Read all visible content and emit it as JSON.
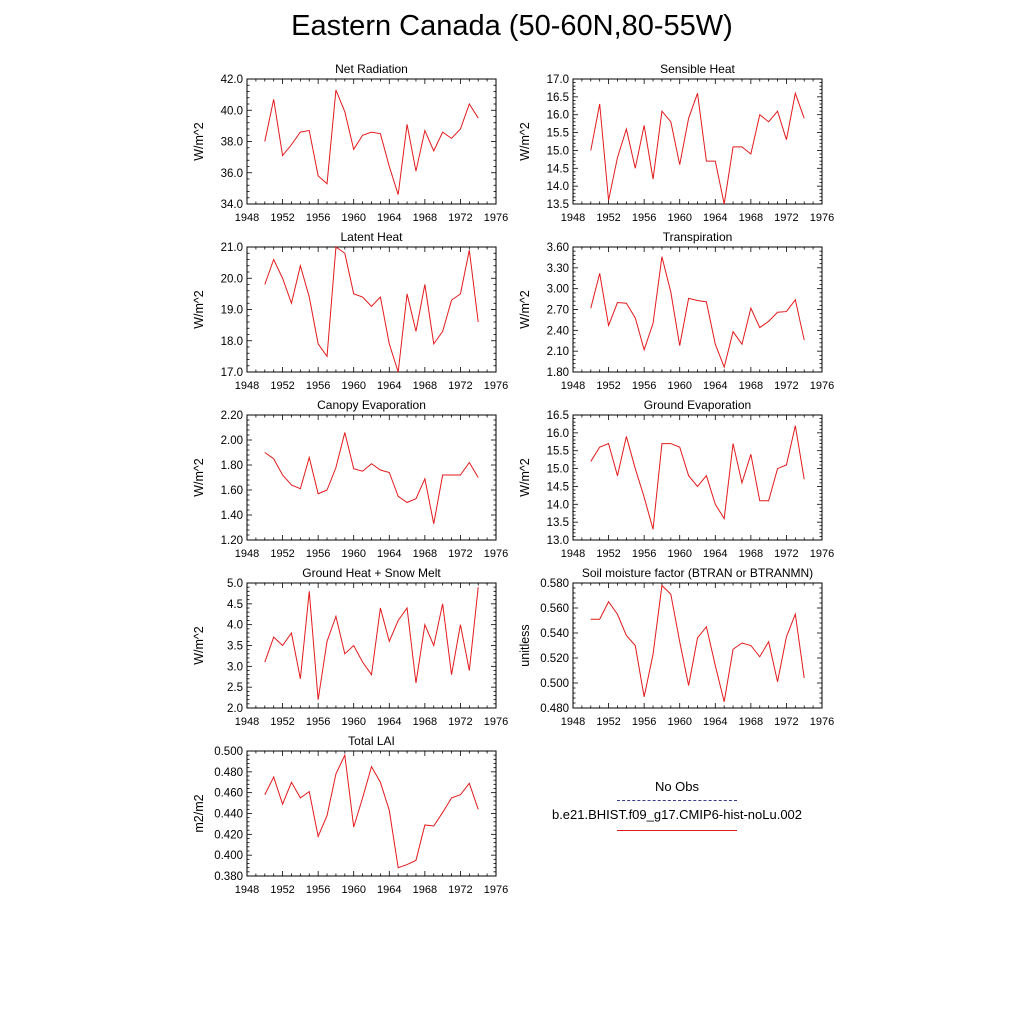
{
  "page_title": "Eastern Canada (50-60N,80-55W)",
  "legend": {
    "obs_label": "No Obs",
    "model_label": "b.e21.BHIST.f09_g17.CMIP6-hist-noLu.002"
  },
  "colors": {
    "model": "#e31a1c",
    "obs": "#3a3a8c"
  },
  "chart_data": [
    {
      "type": "line",
      "title": "Net Radiation",
      "ylabel": "W/m^2",
      "xlim": [
        1948,
        1976
      ],
      "ylim": [
        34.0,
        42.0
      ],
      "x_ticks": [
        1948,
        1952,
        1956,
        1960,
        1964,
        1968,
        1972,
        1976
      ],
      "y_ticks": [
        34.0,
        36.0,
        38.0,
        40.0,
        42.0
      ],
      "y_decimals": 1,
      "series": [
        {
          "x": [
            1950,
            1951,
            1952,
            1953,
            1954,
            1955,
            1956,
            1957,
            1958,
            1959,
            1960,
            1961,
            1962,
            1963,
            1964,
            1965,
            1966,
            1967,
            1968,
            1969,
            1970,
            1971,
            1972,
            1973,
            1974
          ],
          "values": [
            38.0,
            40.7,
            37.1,
            37.8,
            38.6,
            38.7,
            35.8,
            35.3,
            41.3,
            39.9,
            37.5,
            38.4,
            38.6,
            38.5,
            36.4,
            34.6,
            39.1,
            36.1,
            38.7,
            37.4,
            38.6,
            38.2,
            38.8,
            40.4,
            39.5
          ]
        }
      ]
    },
    {
      "type": "line",
      "title": "Sensible Heat",
      "ylabel": "W/m^2",
      "xlim": [
        1948,
        1976
      ],
      "ylim": [
        13.5,
        17.0
      ],
      "x_ticks": [
        1948,
        1952,
        1956,
        1960,
        1964,
        1968,
        1972,
        1976
      ],
      "y_ticks": [
        13.5,
        14.0,
        14.5,
        15.0,
        15.5,
        16.0,
        16.5,
        17.0
      ],
      "y_decimals": 1,
      "series": [
        {
          "x": [
            1950,
            1951,
            1952,
            1953,
            1954,
            1955,
            1956,
            1957,
            1958,
            1959,
            1960,
            1961,
            1962,
            1963,
            1964,
            1965,
            1966,
            1967,
            1968,
            1969,
            1970,
            1971,
            1972,
            1973,
            1974
          ],
          "values": [
            15.0,
            16.3,
            13.6,
            14.8,
            15.6,
            14.5,
            15.7,
            14.2,
            16.1,
            15.8,
            14.6,
            15.9,
            16.6,
            14.7,
            14.7,
            13.5,
            15.1,
            15.1,
            14.9,
            16.0,
            15.8,
            16.1,
            15.3,
            16.6,
            15.9
          ]
        }
      ]
    },
    {
      "type": "line",
      "title": "Latent Heat",
      "ylabel": "W/m^2",
      "xlim": [
        1948,
        1976
      ],
      "ylim": [
        17.0,
        21.0
      ],
      "x_ticks": [
        1948,
        1952,
        1956,
        1960,
        1964,
        1968,
        1972,
        1976
      ],
      "y_ticks": [
        17.0,
        18.0,
        19.0,
        20.0,
        21.0
      ],
      "y_decimals": 1,
      "series": [
        {
          "x": [
            1950,
            1951,
            1952,
            1953,
            1954,
            1955,
            1956,
            1957,
            1958,
            1959,
            1960,
            1961,
            1962,
            1963,
            1964,
            1965,
            1966,
            1967,
            1968,
            1969,
            1970,
            1971,
            1972,
            1973,
            1974
          ],
          "values": [
            19.8,
            20.6,
            20.0,
            19.2,
            20.4,
            19.4,
            17.9,
            17.5,
            21.0,
            20.8,
            19.5,
            19.4,
            19.1,
            19.4,
            17.9,
            17.0,
            19.5,
            18.3,
            19.8,
            17.9,
            18.3,
            19.3,
            19.5,
            20.9,
            18.6
          ]
        }
      ]
    },
    {
      "type": "line",
      "title": "Transpiration",
      "ylabel": "W/m^2",
      "xlim": [
        1948,
        1976
      ],
      "ylim": [
        1.8,
        3.6
      ],
      "x_ticks": [
        1948,
        1952,
        1956,
        1960,
        1964,
        1968,
        1972,
        1976
      ],
      "y_ticks": [
        1.8,
        2.1,
        2.4,
        2.7,
        3.0,
        3.3,
        3.6
      ],
      "y_decimals": 2,
      "series": [
        {
          "x": [
            1950,
            1951,
            1952,
            1953,
            1954,
            1955,
            1956,
            1957,
            1958,
            1959,
            1960,
            1961,
            1962,
            1963,
            1964,
            1965,
            1966,
            1967,
            1968,
            1969,
            1970,
            1971,
            1972,
            1973,
            1974
          ],
          "values": [
            2.72,
            3.22,
            2.47,
            2.8,
            2.79,
            2.58,
            2.12,
            2.5,
            3.46,
            2.95,
            2.18,
            2.86,
            2.83,
            2.81,
            2.2,
            1.87,
            2.38,
            2.2,
            2.72,
            2.44,
            2.53,
            2.66,
            2.67,
            2.84,
            2.26
          ]
        }
      ]
    },
    {
      "type": "line",
      "title": "Canopy Evaporation",
      "ylabel": "W/m^2",
      "xlim": [
        1948,
        1976
      ],
      "ylim": [
        1.2,
        2.2
      ],
      "x_ticks": [
        1948,
        1952,
        1956,
        1960,
        1964,
        1968,
        1972,
        1976
      ],
      "y_ticks": [
        1.2,
        1.4,
        1.6,
        1.8,
        2.0,
        2.2
      ],
      "y_decimals": 2,
      "series": [
        {
          "x": [
            1950,
            1951,
            1952,
            1953,
            1954,
            1955,
            1956,
            1957,
            1958,
            1959,
            1960,
            1961,
            1962,
            1963,
            1964,
            1965,
            1966,
            1967,
            1968,
            1969,
            1970,
            1971,
            1972,
            1973,
            1974
          ],
          "values": [
            1.9,
            1.85,
            1.72,
            1.64,
            1.61,
            1.86,
            1.57,
            1.6,
            1.78,
            2.06,
            1.77,
            1.75,
            1.81,
            1.76,
            1.74,
            1.55,
            1.5,
            1.53,
            1.69,
            1.33,
            1.72,
            1.72,
            1.72,
            1.82,
            1.7
          ]
        }
      ]
    },
    {
      "type": "line",
      "title": "Ground Evaporation",
      "ylabel": "W/m^2",
      "xlim": [
        1948,
        1976
      ],
      "ylim": [
        13.0,
        16.5
      ],
      "x_ticks": [
        1948,
        1952,
        1956,
        1960,
        1964,
        1968,
        1972,
        1976
      ],
      "y_ticks": [
        13.0,
        13.5,
        14.0,
        14.5,
        15.0,
        15.5,
        16.0,
        16.5
      ],
      "y_decimals": 1,
      "series": [
        {
          "x": [
            1950,
            1951,
            1952,
            1953,
            1954,
            1955,
            1956,
            1957,
            1958,
            1959,
            1960,
            1961,
            1962,
            1963,
            1964,
            1965,
            1966,
            1967,
            1968,
            1969,
            1970,
            1971,
            1972,
            1973,
            1974
          ],
          "values": [
            15.2,
            15.6,
            15.7,
            14.8,
            15.9,
            15.0,
            14.2,
            13.3,
            15.7,
            15.7,
            15.6,
            14.8,
            14.5,
            14.8,
            14.0,
            13.6,
            15.7,
            14.6,
            15.4,
            14.1,
            14.1,
            15.0,
            15.1,
            16.2,
            14.7
          ]
        }
      ]
    },
    {
      "type": "line",
      "title": "Ground Heat + Snow Melt",
      "ylabel": "W/m^2",
      "xlim": [
        1948,
        1976
      ],
      "ylim": [
        2.0,
        5.0
      ],
      "x_ticks": [
        1948,
        1952,
        1956,
        1960,
        1964,
        1968,
        1972,
        1976
      ],
      "y_ticks": [
        2.0,
        2.5,
        3.0,
        3.5,
        4.0,
        4.5,
        5.0
      ],
      "y_decimals": 1,
      "series": [
        {
          "x": [
            1950,
            1951,
            1952,
            1953,
            1954,
            1955,
            1956,
            1957,
            1958,
            1959,
            1960,
            1961,
            1962,
            1963,
            1964,
            1965,
            1966,
            1967,
            1968,
            1969,
            1970,
            1971,
            1972,
            1973,
            1974
          ],
          "values": [
            3.1,
            3.7,
            3.5,
            3.8,
            2.7,
            4.8,
            2.2,
            3.6,
            4.2,
            3.3,
            3.5,
            3.1,
            2.8,
            4.4,
            3.6,
            4.1,
            4.4,
            2.6,
            4.0,
            3.5,
            4.5,
            2.8,
            4.0,
            2.9,
            4.9
          ]
        }
      ]
    },
    {
      "type": "line",
      "title": "Soil moisture factor (BTRAN or BTRANMN)",
      "ylabel": "unitless",
      "xlim": [
        1948,
        1976
      ],
      "ylim": [
        0.48,
        0.58
      ],
      "x_ticks": [
        1948,
        1952,
        1956,
        1960,
        1964,
        1968,
        1972,
        1976
      ],
      "y_ticks": [
        0.48,
        0.5,
        0.52,
        0.54,
        0.56,
        0.58
      ],
      "y_decimals": 3,
      "series": [
        {
          "x": [
            1950,
            1951,
            1952,
            1953,
            1954,
            1955,
            1956,
            1957,
            1958,
            1959,
            1960,
            1961,
            1962,
            1963,
            1964,
            1965,
            1966,
            1967,
            1968,
            1969,
            1970,
            1971,
            1972,
            1973,
            1974
          ],
          "values": [
            0.551,
            0.551,
            0.565,
            0.555,
            0.538,
            0.53,
            0.489,
            0.523,
            0.578,
            0.571,
            0.533,
            0.498,
            0.536,
            0.545,
            0.514,
            0.485,
            0.527,
            0.532,
            0.53,
            0.521,
            0.533,
            0.501,
            0.537,
            0.555,
            0.504
          ]
        }
      ]
    },
    {
      "type": "line",
      "title": "Total LAI",
      "ylabel": "m2/m2",
      "xlim": [
        1948,
        1976
      ],
      "ylim": [
        0.38,
        0.5
      ],
      "x_ticks": [
        1948,
        1952,
        1956,
        1960,
        1964,
        1968,
        1972,
        1976
      ],
      "y_ticks": [
        0.38,
        0.4,
        0.42,
        0.44,
        0.46,
        0.48,
        0.5
      ],
      "y_decimals": 3,
      "series": [
        {
          "x": [
            1950,
            1951,
            1952,
            1953,
            1954,
            1955,
            1956,
            1957,
            1958,
            1959,
            1960,
            1961,
            1962,
            1963,
            1964,
            1965,
            1966,
            1967,
            1968,
            1969,
            1970,
            1971,
            1972,
            1973,
            1974
          ],
          "values": [
            0.458,
            0.475,
            0.449,
            0.47,
            0.455,
            0.461,
            0.418,
            0.438,
            0.478,
            0.496,
            0.427,
            0.455,
            0.485,
            0.47,
            0.443,
            0.388,
            0.391,
            0.395,
            0.429,
            0.428,
            0.441,
            0.455,
            0.458,
            0.469,
            0.444
          ]
        }
      ]
    }
  ]
}
